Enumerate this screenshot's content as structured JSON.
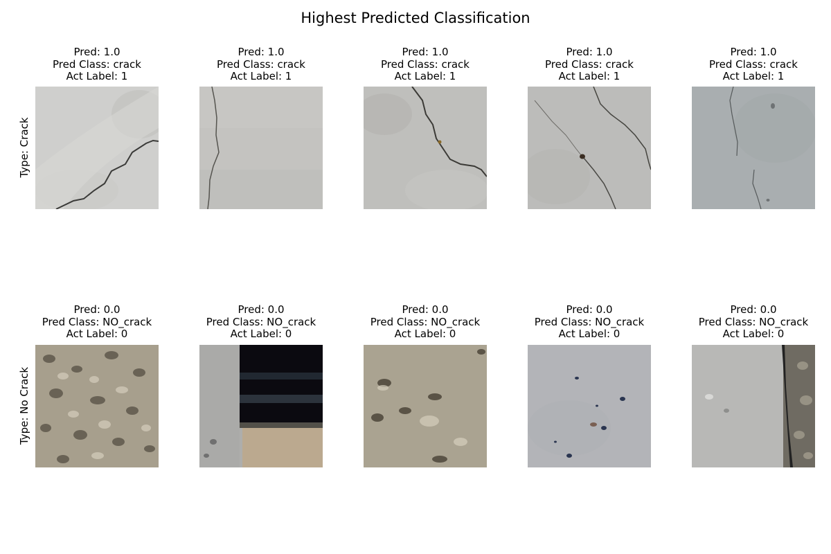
{
  "figure": {
    "title": "Highest Predicted Classification"
  },
  "rows": [
    {
      "label": "Type: Crack",
      "panels": [
        {
          "pred": "Pred: 1.0",
          "pred_class": "Pred Class: crack",
          "act_label": "Act Label: 1",
          "image": "concrete-crack-diagonal",
          "base_color": "#cfcfcd"
        },
        {
          "pred": "Pred: 1.0",
          "pred_class": "Pred Class: crack",
          "act_label": "Act Label: 1",
          "image": "concrete-crack-vertical-left",
          "base_color": "#c4c3c0"
        },
        {
          "pred": "Pred: 1.0",
          "pred_class": "Pred Class: crack",
          "act_label": "Act Label: 1",
          "image": "concrete-crack-diagonal-down",
          "base_color": "#bfbfbc"
        },
        {
          "pred": "Pred: 1.0",
          "pred_class": "Pred Class: crack",
          "act_label": "Act Label: 1",
          "image": "concrete-crack-two-lines",
          "base_color": "#bcbcba"
        },
        {
          "pred": "Pred: 1.0",
          "pred_class": "Pred Class: crack",
          "act_label": "Act Label: 1",
          "image": "concrete-crack-faint",
          "base_color": "#a9aeb0"
        }
      ]
    },
    {
      "label": "Type: No Crack",
      "panels": [
        {
          "pred": "Pred: 0.0",
          "pred_class": "Pred Class: NO_crack",
          "act_label": "Act Label: 0",
          "image": "rough-gravel-surface",
          "base_color": "#a79f8d"
        },
        {
          "pred": "Pred: 0.0",
          "pred_class": "Pred Class: NO_crack",
          "act_label": "Act Label: 0",
          "image": "dark-gap-corner",
          "base_color": "#aeaeac"
        },
        {
          "pred": "Pred: 0.0",
          "pred_class": "Pred Class: NO_crack",
          "act_label": "Act Label: 0",
          "image": "sandy-surface-pits",
          "base_color": "#aaa391"
        },
        {
          "pred": "Pred: 0.0",
          "pred_class": "Pred Class: NO_crack",
          "act_label": "Act Label: 0",
          "image": "speckled-concrete",
          "base_color": "#b3b4b8"
        },
        {
          "pred": "Pred: 0.0",
          "pred_class": "Pred Class: NO_crack",
          "act_label": "Act Label: 0",
          "image": "concrete-edge-gravel",
          "base_color": "#b8b8b6"
        }
      ]
    }
  ]
}
